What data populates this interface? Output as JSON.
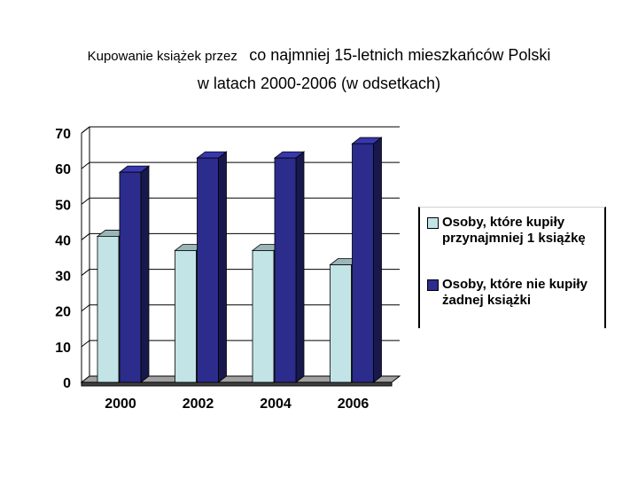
{
  "title": {
    "part1": "Kupowanie książek przez",
    "part2": "co najmniej 15-letnich mieszkańców Polski",
    "line2": "w latach 2000-2006 (w odsetkach)"
  },
  "colors": {
    "series1": "#c2e4e6",
    "series2": "#2c2c8c",
    "floor": "#808080"
  },
  "chart_data": {
    "type": "bar",
    "categories": [
      "2000",
      "2002",
      "2004",
      "2006"
    ],
    "series": [
      {
        "name": "Osoby, które kupiły przynajmniej 1 książkę",
        "values": [
          41,
          37,
          37,
          33
        ]
      },
      {
        "name": "Osoby, które nie kupiły żadnej książki",
        "values": [
          59,
          63,
          63,
          67
        ]
      }
    ],
    "ylim": [
      0,
      70
    ],
    "yticks": [
      0,
      10,
      20,
      30,
      40,
      50,
      60,
      70
    ],
    "grid": true,
    "legend": "right",
    "three_d": true
  }
}
